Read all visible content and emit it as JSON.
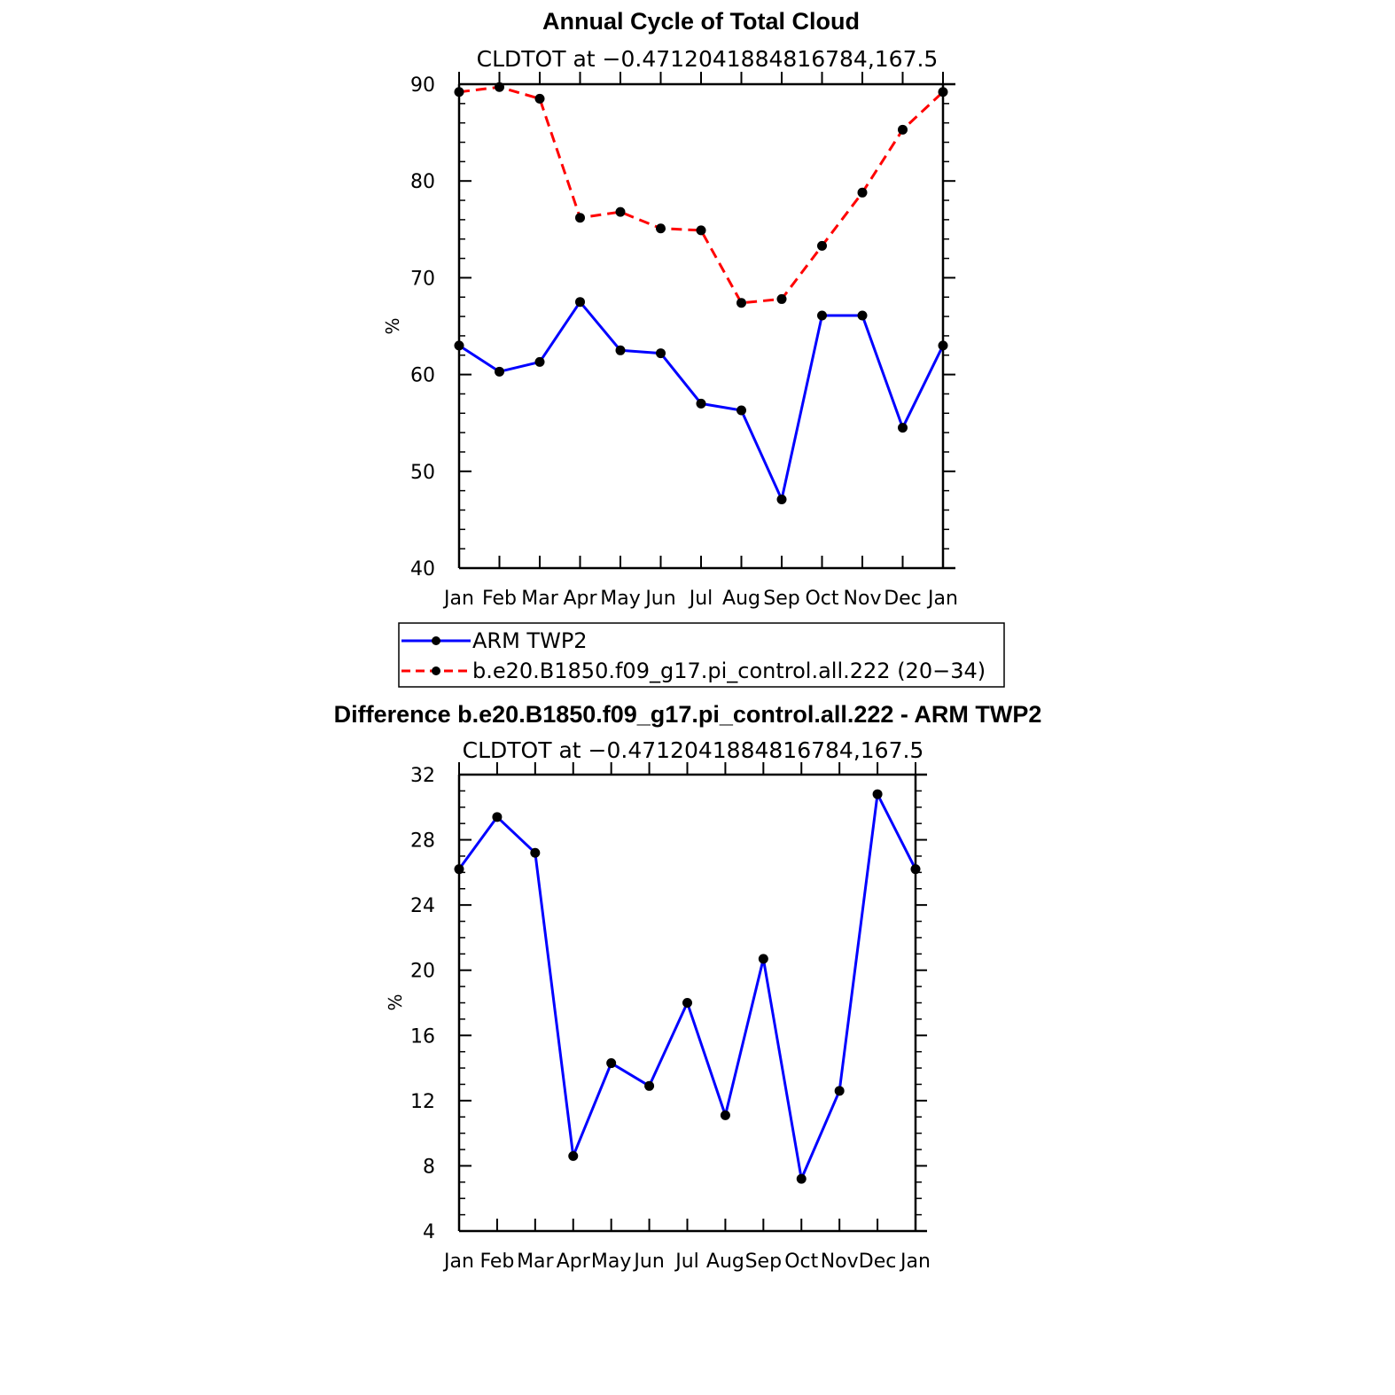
{
  "chart_data": [
    {
      "type": "line",
      "title": "Annual Cycle of Total Cloud",
      "subtitle": "CLDTOT at −0.4712041884816784,167.5",
      "ylabel": "%",
      "ylim": [
        40,
        90
      ],
      "yticks": [
        "40",
        "50",
        "60",
        "70",
        "80",
        "90"
      ],
      "categories": [
        "Jan",
        "Feb",
        "Mar",
        "Apr",
        "May",
        "Jun",
        "Jul",
        "Aug",
        "Sep",
        "Oct",
        "Nov",
        "Dec",
        "Jan"
      ],
      "series": [
        {
          "name": "ARM TWP2",
          "color": "#0000ff",
          "dash": "solid",
          "values": [
            63.0,
            60.3,
            61.3,
            67.5,
            62.5,
            62.2,
            57.0,
            56.3,
            47.1,
            66.1,
            66.1,
            54.5,
            63.0
          ]
        },
        {
          "name": "b.e20.B1850.f09_g17.pi_control.all.222 (20−34)",
          "color": "#ff0000",
          "dash": "dashed",
          "values": [
            89.2,
            89.7,
            88.5,
            76.2,
            76.8,
            75.1,
            74.9,
            67.4,
            67.8,
            73.3,
            78.8,
            85.3,
            89.2
          ]
        }
      ]
    },
    {
      "type": "line",
      "title": "Difference b.e20.B1850.f09_g17.pi_control.all.222 - ARM TWP2",
      "subtitle": "CLDTOT at −0.4712041884816784,167.5",
      "ylabel": "%",
      "ylim": [
        4,
        32
      ],
      "yticks": [
        "4",
        "8",
        "12",
        "16",
        "20",
        "24",
        "28",
        "32"
      ],
      "categories": [
        "Jan",
        "Feb",
        "Mar",
        "Apr",
        "May",
        "Jun",
        "Jul",
        "Aug",
        "Sep",
        "Oct",
        "Nov",
        "Dec",
        "Jan"
      ],
      "series": [
        {
          "color": "#0000ff",
          "dash": "solid",
          "values": [
            26.2,
            29.4,
            27.2,
            8.6,
            14.3,
            12.9,
            18.0,
            11.1,
            20.7,
            7.2,
            12.6,
            30.8,
            26.2
          ]
        }
      ]
    }
  ]
}
